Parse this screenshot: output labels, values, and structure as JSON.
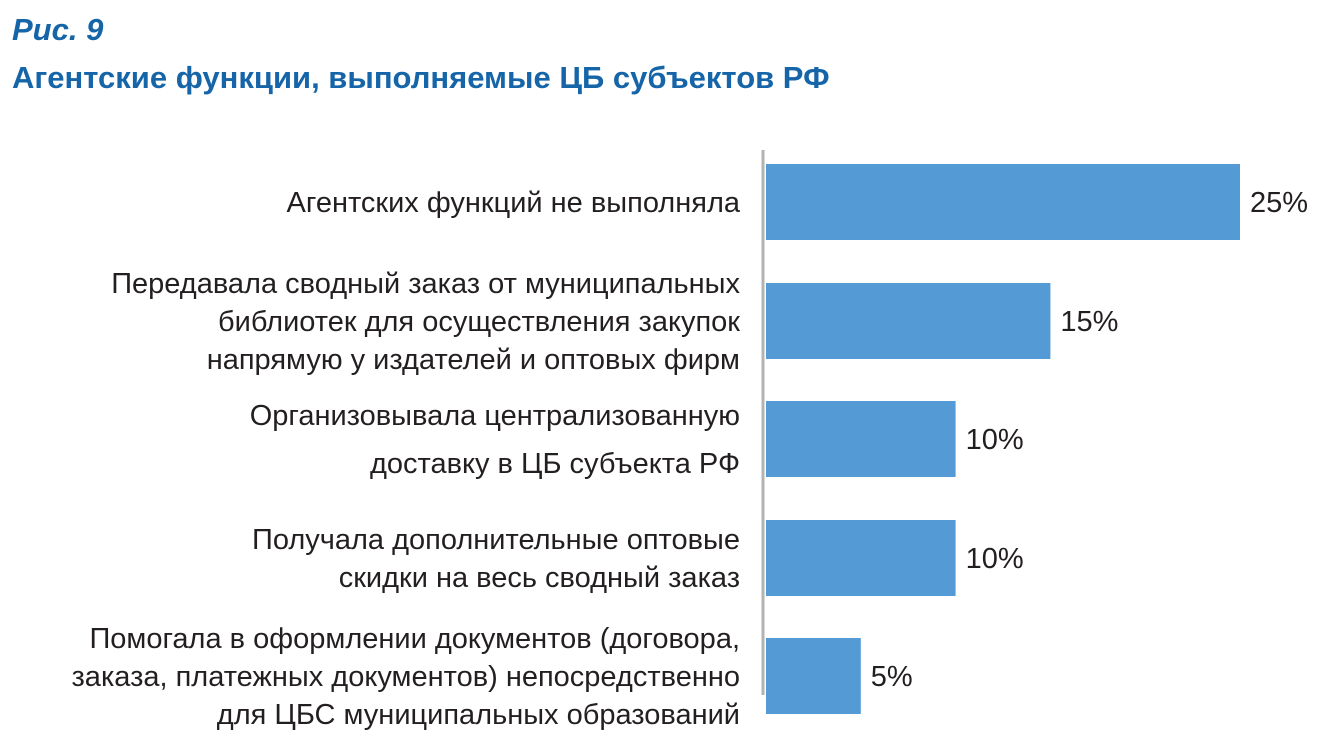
{
  "figure_label": "Рис. 9",
  "chart_data": {
    "type": "bar",
    "orientation": "horizontal",
    "title": "Агентские функции, выполняемые ЦБ субъектов РФ",
    "categories": [
      [
        "Агентских функций не выполняла"
      ],
      [
        "Передавала сводный заказ от муниципальных",
        "библиотек для осуществления закупок",
        "напрямую у издателей и оптовых фирм"
      ],
      [
        "Организовывала централизованную",
        "доставку в ЦБ субъекта РФ"
      ],
      [
        "Получала дополнительные оптовые",
        "скидки на весь сводный заказ"
      ],
      [
        "Помогала в оформлении документов (договора,",
        "заказа, платежных документов) непосредственно",
        "для ЦБС муниципальных образований"
      ]
    ],
    "values": [
      25,
      15,
      10,
      10,
      5
    ],
    "value_labels": [
      "25%",
      "15%",
      "10%",
      "10%",
      "5%"
    ],
    "xlim": [
      0,
      25
    ],
    "xlabel": "",
    "ylabel": "",
    "grid": false,
    "bar_color": "#549bd6"
  }
}
